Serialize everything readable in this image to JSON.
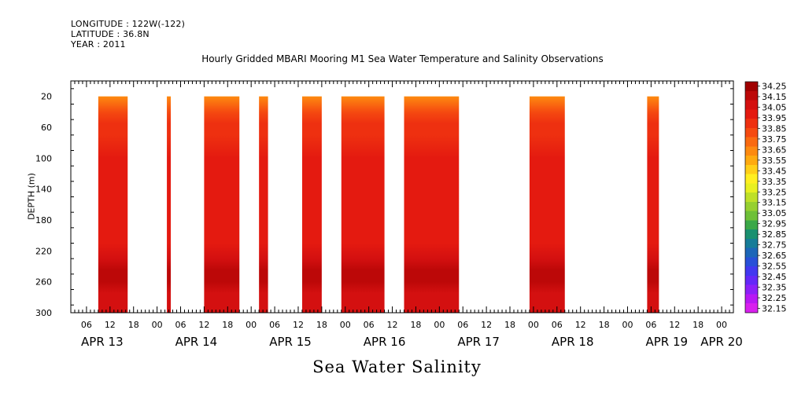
{
  "header": {
    "longitude": "LONGITUDE : 122W(-122)",
    "latitude": "LATITUDE : 36.8N",
    "year": "YEAR : 2011"
  },
  "chart_data": {
    "type": "heatmap",
    "title": "Hourly Gridded MBARI Mooring M1 Sea Water Temperature and Salinity Observations",
    "xlabel": "Sea Water Salinity",
    "ylabel": "DEPTH (m)",
    "x_unit": "hours since APR 13 00:00",
    "xlim": [
      2,
      171
    ],
    "ylim": [
      300,
      0
    ],
    "y_ticks": [
      20,
      60,
      100,
      140,
      180,
      220,
      260,
      300
    ],
    "x_hour_labels": [
      {
        "x": 6,
        "label": "06"
      },
      {
        "x": 12,
        "label": "12"
      },
      {
        "x": 18,
        "label": "18"
      },
      {
        "x": 24,
        "label": "00"
      },
      {
        "x": 30,
        "label": "06"
      },
      {
        "x": 36,
        "label": "12"
      },
      {
        "x": 42,
        "label": "18"
      },
      {
        "x": 48,
        "label": "00"
      },
      {
        "x": 54,
        "label": "06"
      },
      {
        "x": 60,
        "label": "12"
      },
      {
        "x": 66,
        "label": "18"
      },
      {
        "x": 72,
        "label": "00"
      },
      {
        "x": 78,
        "label": "06"
      },
      {
        "x": 84,
        "label": "12"
      },
      {
        "x": 90,
        "label": "18"
      },
      {
        "x": 96,
        "label": "00"
      },
      {
        "x": 102,
        "label": "06"
      },
      {
        "x": 108,
        "label": "12"
      },
      {
        "x": 114,
        "label": "18"
      },
      {
        "x": 120,
        "label": "00"
      },
      {
        "x": 126,
        "label": "06"
      },
      {
        "x": 132,
        "label": "12"
      },
      {
        "x": 138,
        "label": "18"
      },
      {
        "x": 144,
        "label": "00"
      },
      {
        "x": 150,
        "label": "06"
      },
      {
        "x": 156,
        "label": "12"
      },
      {
        "x": 162,
        "label": "18"
      },
      {
        "x": 168,
        "label": "00"
      }
    ],
    "x_day_labels": [
      {
        "x": 10,
        "label": "APR 13"
      },
      {
        "x": 34,
        "label": "APR 14"
      },
      {
        "x": 58,
        "label": "APR 15"
      },
      {
        "x": 82,
        "label": "APR 16"
      },
      {
        "x": 106,
        "label": "APR 17"
      },
      {
        "x": 130,
        "label": "APR 18"
      },
      {
        "x": 154,
        "label": "APR 19"
      },
      {
        "x": 168,
        "label": "APR 20"
      }
    ],
    "data_depth_range": [
      20,
      300
    ],
    "segments": [
      {
        "start": 9,
        "end": 16.5
      },
      {
        "start": 26.5,
        "end": 27.5
      },
      {
        "start": 36,
        "end": 45
      },
      {
        "start": 50,
        "end": 52.3
      },
      {
        "start": 61,
        "end": 66
      },
      {
        "start": 71,
        "end": 82
      },
      {
        "start": 87,
        "end": 101
      },
      {
        "start": 119,
        "end": 128
      },
      {
        "start": 149,
        "end": 152
      }
    ],
    "depth_profile": [
      {
        "depth": 20,
        "value": 33.65
      },
      {
        "depth": 30,
        "value": 33.75
      },
      {
        "depth": 40,
        "value": 33.8
      },
      {
        "depth": 55,
        "value": 33.87
      },
      {
        "depth": 70,
        "value": 33.92
      },
      {
        "depth": 100,
        "value": 33.95
      },
      {
        "depth": 140,
        "value": 33.97
      },
      {
        "depth": 180,
        "value": 33.98
      },
      {
        "depth": 210,
        "value": 34.02
      },
      {
        "depth": 230,
        "value": 34.07
      },
      {
        "depth": 245,
        "value": 34.12
      },
      {
        "depth": 252,
        "value": 34.17
      },
      {
        "depth": 260,
        "value": 34.12
      },
      {
        "depth": 275,
        "value": 34.07
      },
      {
        "depth": 300,
        "value": 34.05
      }
    ],
    "colorbar": {
      "labels": [
        "34.25",
        "34.15",
        "34.05",
        "33.95",
        "33.85",
        "33.75",
        "33.65",
        "33.55",
        "33.45",
        "33.35",
        "33.25",
        "33.15",
        "33.05",
        "32.95",
        "32.85",
        "32.75",
        "32.65",
        "32.55",
        "32.45",
        "32.35",
        "32.25",
        "32.15"
      ],
      "colors": [
        "#a00000",
        "#bc0808",
        "#d41010",
        "#e41a10",
        "#ee3010",
        "#f54a10",
        "#fa6a10",
        "#fd8a10",
        "#feaa10",
        "#ffcf18",
        "#ffef20",
        "#e8f020",
        "#bee028",
        "#96d030",
        "#6ec038",
        "#3aa848",
        "#1a9070",
        "#167c98",
        "#1c66b8",
        "#2850d8",
        "#4238f0",
        "#6428f8",
        "#8c20f8",
        "#b818f4",
        "#d820ee"
      ]
    }
  }
}
